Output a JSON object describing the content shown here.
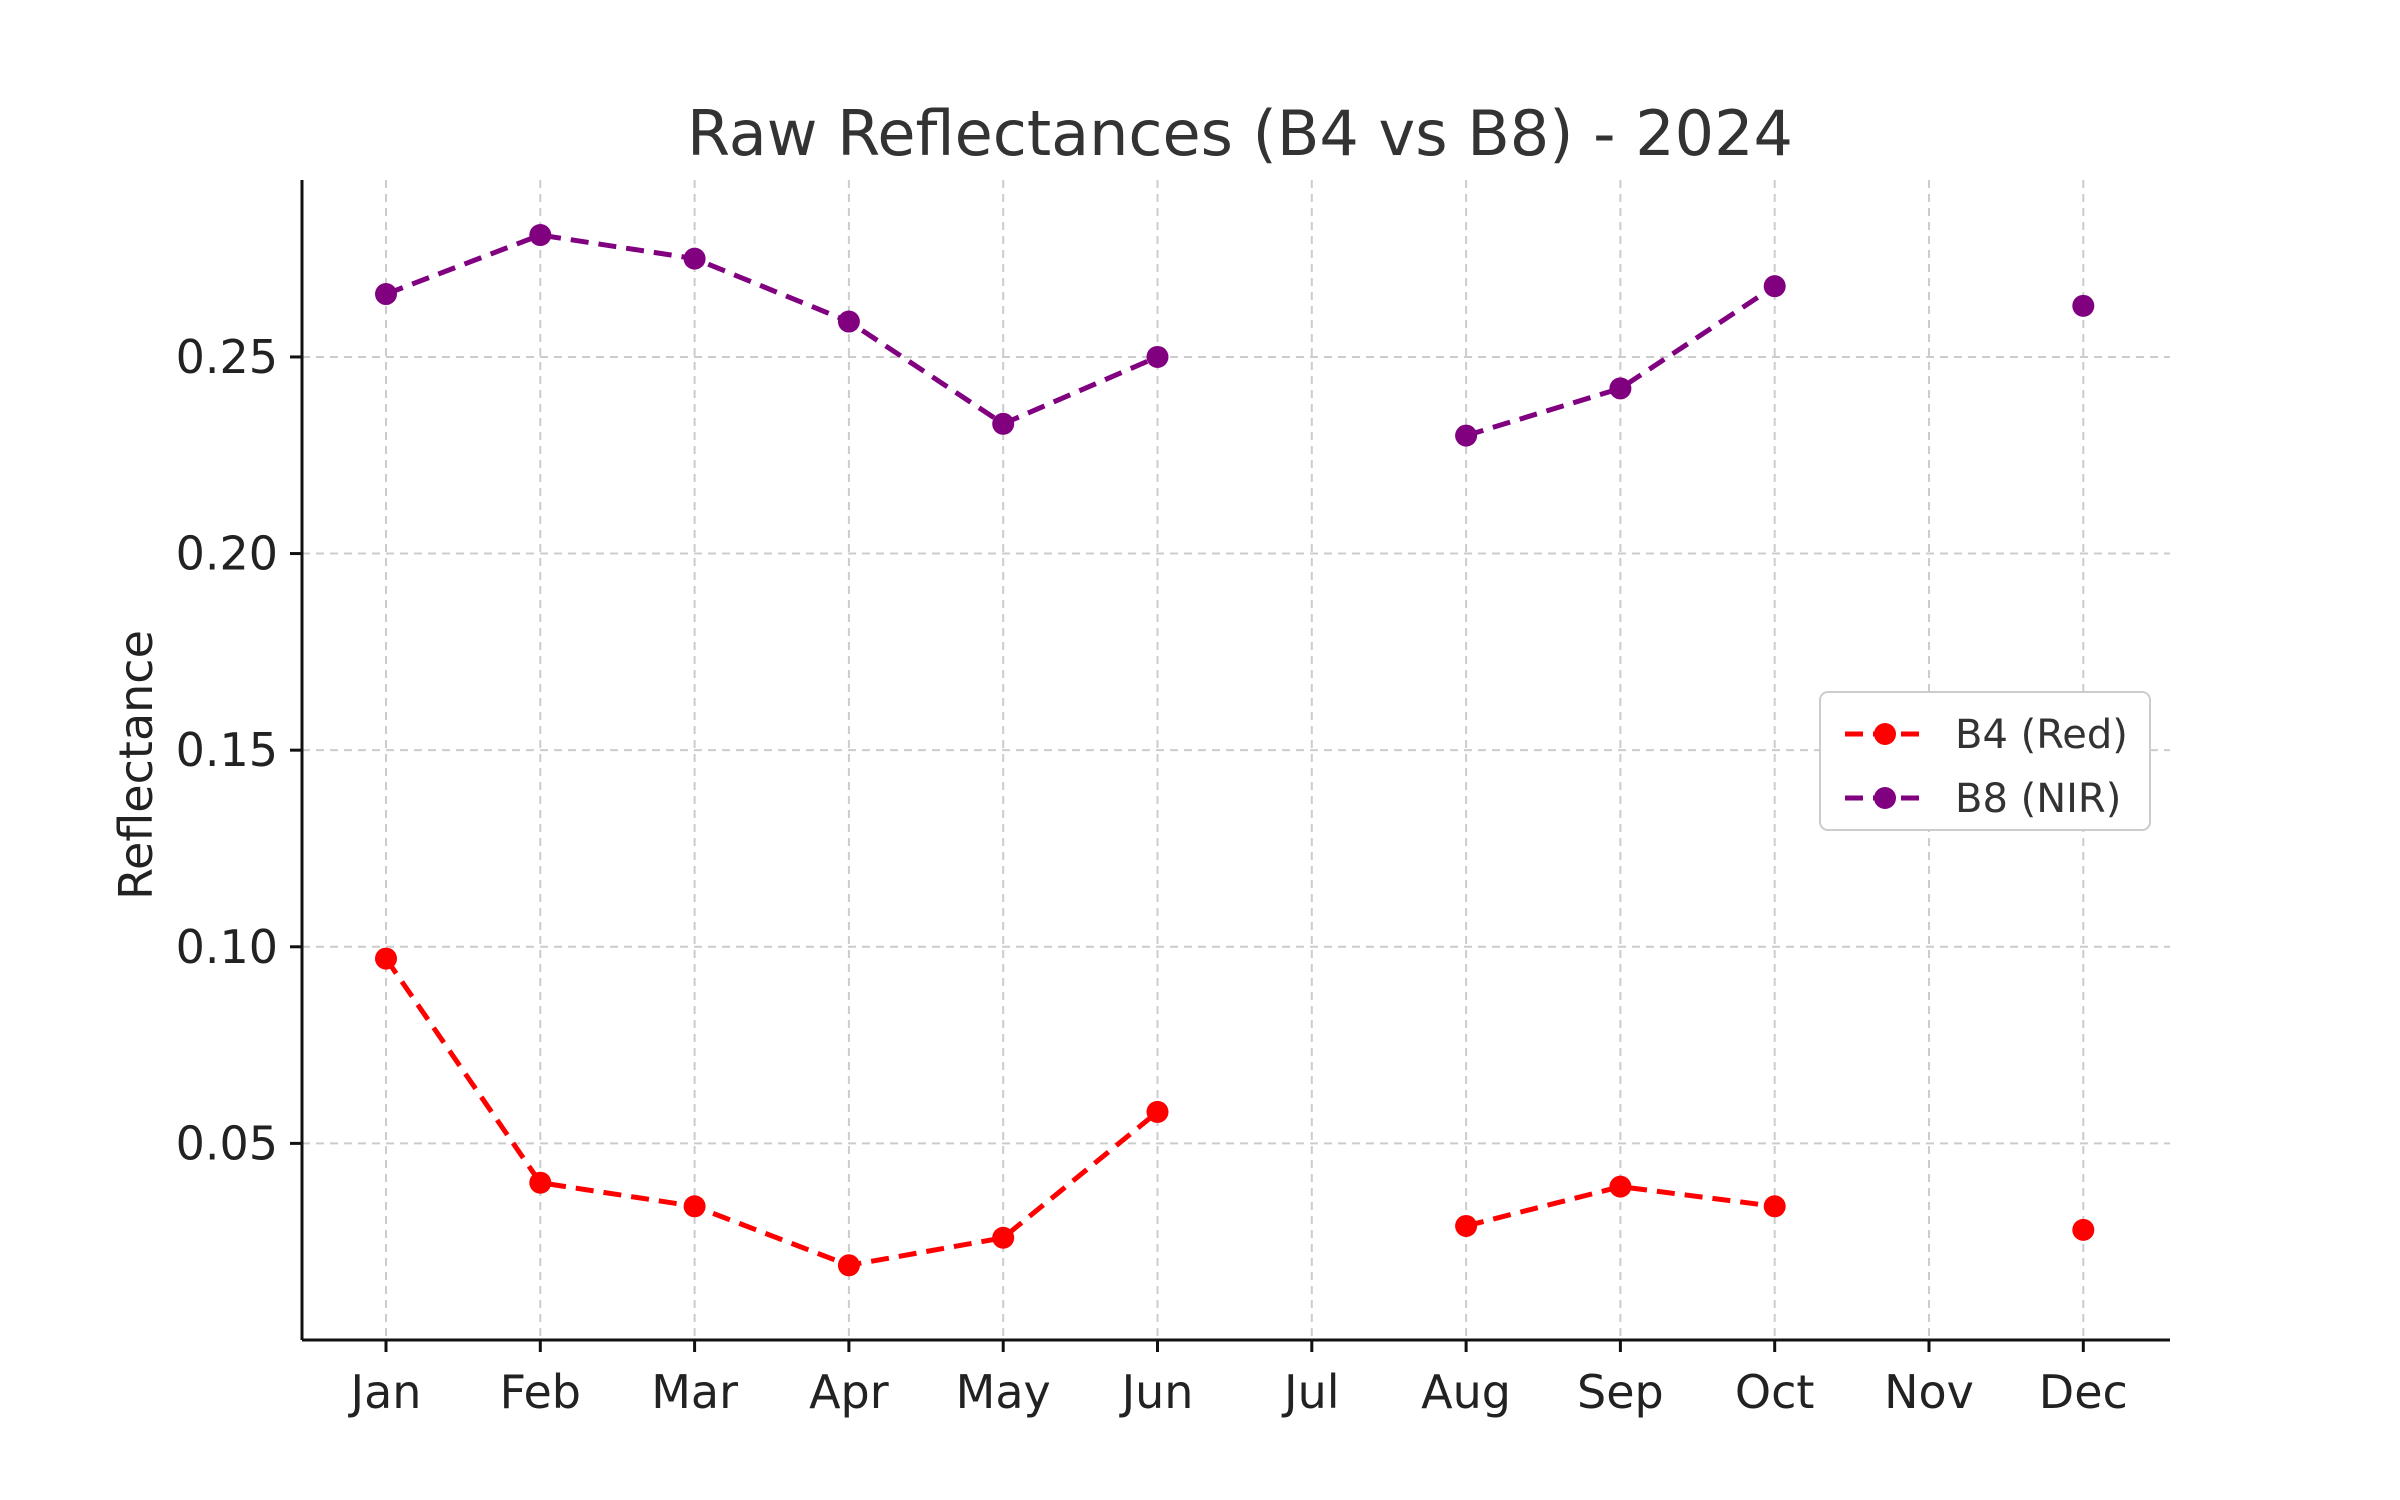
{
  "chart_data": {
    "type": "line",
    "title": "Raw Reflectances (B4 vs B8) - 2024",
    "xlabel": "",
    "ylabel": "Reflectance",
    "categories": [
      "Jan",
      "Feb",
      "Mar",
      "Apr",
      "May",
      "Jun",
      "Jul",
      "Aug",
      "Sep",
      "Oct",
      "Nov",
      "Dec"
    ],
    "ylim": [
      0.0,
      0.295
    ],
    "yticks": [
      0.05,
      0.1,
      0.15,
      0.2,
      0.25
    ],
    "ytick_labels": [
      "0.05",
      "0.10",
      "0.15",
      "0.20",
      "0.25"
    ],
    "grid": true,
    "legend_position": "center-right",
    "series": [
      {
        "name": "B4 (Red)",
        "color": "#ff0000",
        "style": "dashed-with-markers",
        "values": [
          0.097,
          0.04,
          0.034,
          0.019,
          0.026,
          0.058,
          null,
          0.029,
          0.039,
          0.034,
          null,
          0.028
        ]
      },
      {
        "name": "B8 (NIR)",
        "color": "#800080",
        "style": "dashed-with-markers",
        "values": [
          0.266,
          0.281,
          0.275,
          0.259,
          0.233,
          0.25,
          null,
          0.23,
          0.242,
          0.268,
          null,
          0.263
        ]
      }
    ]
  }
}
